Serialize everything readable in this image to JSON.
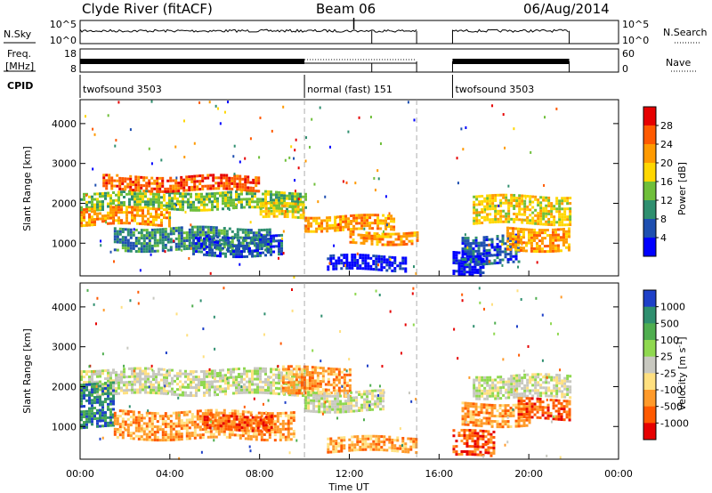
{
  "header": {
    "station": "Clyde River (fitACF)",
    "beam": "Beam 06",
    "date": "06/Aug/2014"
  },
  "nsky_panel": {
    "left_label": "N.Sky",
    "right_label": "N.Search",
    "ticks_left": [
      "10^5",
      "10^0"
    ],
    "ticks_right": [
      "10^5",
      "10^0"
    ],
    "segments": [
      [
        0.0,
        15.0
      ],
      [
        16.6,
        21.8
      ]
    ],
    "noise_level": 0.55,
    "step": {
      "from": 13.0,
      "to": 15.0
    }
  },
  "freq_panel": {
    "left_label_1": "Freq.",
    "left_label_2": "[MHz]",
    "right_label": "Nave",
    "ticks_left": [
      "18",
      "8"
    ],
    "ticks_right": [
      "60",
      "0"
    ],
    "segments": [
      [
        0.0,
        15.0
      ],
      [
        16.6,
        21.8
      ]
    ],
    "dotted_segment": [
      10.0,
      15.0
    ]
  },
  "cpid_panel": {
    "label": "CPID",
    "modes": [
      {
        "name": "twofsound 3503",
        "start": 0.0
      },
      {
        "name": "normal (fast) 151",
        "start": 10.0
      },
      {
        "name": "twofsound 3503",
        "start": 16.6
      }
    ]
  },
  "chart_data": [
    {
      "type": "heatmap",
      "quantity": "power",
      "ylabel": "Slant Range [km]",
      "x_range_hours": [
        0,
        24
      ],
      "ylim_km": [
        180,
        4600
      ],
      "y_ticks": [
        1000,
        2000,
        3000,
        4000
      ],
      "colorbar": {
        "label": "Power [dB]",
        "ticks": [
          "28",
          "24",
          "20",
          "16",
          "12",
          "8",
          "4"
        ],
        "colors": [
          "#e60000",
          "#ff5a00",
          "#ff9a00",
          "#ffd700",
          "#6fbf3a",
          "#2f8f6f",
          "#1e4fb0",
          "#0000ff"
        ]
      },
      "bands": [
        {
          "t0": 0.0,
          "t1": 10.0,
          "r0": 1850,
          "r1": 2300,
          "level": 4
        },
        {
          "t0": 0.0,
          "t1": 4.0,
          "r0": 1450,
          "r1": 1900,
          "level": 2
        },
        {
          "t0": 1.0,
          "t1": 8.0,
          "r0": 2350,
          "r1": 2700,
          "level": 1
        },
        {
          "t0": 1.5,
          "t1": 8.5,
          "r0": 800,
          "r1": 1400,
          "level": 5
        },
        {
          "t0": 5.0,
          "t1": 9.0,
          "r0": 700,
          "r1": 1200,
          "level": 6
        },
        {
          "t0": 8.0,
          "t1": 10.0,
          "r0": 1600,
          "r1": 2000,
          "level": 3
        },
        {
          "t0": 10.0,
          "t1": 14.0,
          "r0": 1300,
          "r1": 1700,
          "level": 2
        },
        {
          "t0": 11.0,
          "t1": 14.5,
          "r0": 350,
          "r1": 700,
          "level": 7
        },
        {
          "t0": 12.0,
          "t1": 15.0,
          "r0": 1000,
          "r1": 1300,
          "level": 2
        },
        {
          "t0": 16.6,
          "t1": 18.0,
          "r0": 250,
          "r1": 800,
          "level": 7
        },
        {
          "t0": 17.0,
          "t1": 19.5,
          "r0": 500,
          "r1": 1200,
          "level": 6
        },
        {
          "t0": 17.5,
          "t1": 21.8,
          "r0": 1500,
          "r1": 2200,
          "level": 3
        },
        {
          "t0": 19.0,
          "t1": 21.8,
          "r0": 800,
          "r1": 1400,
          "level": 2
        }
      ]
    },
    {
      "type": "heatmap",
      "quantity": "velocity",
      "ylabel": "Slant Range [km]",
      "x_range_hours": [
        0,
        24
      ],
      "ylim_km": [
        180,
        4600
      ],
      "y_ticks": [
        1000,
        2000,
        3000,
        4000
      ],
      "x_ticks": [
        "00:00",
        "04:00",
        "08:00",
        "12:00",
        "16:00",
        "20:00",
        "00:00"
      ],
      "xlabel": "Time UT",
      "colorbar": {
        "label": "Velocity [m s",
        "label_sup": "-1",
        "label_end": "]",
        "ticks": [
          "1000",
          "500",
          "100",
          "25",
          "-25",
          "-100",
          "-500",
          "-1000"
        ],
        "colors": [
          "#1e40c8",
          "#2f8f6f",
          "#4fae4f",
          "#8fd84f",
          "#c8c8c0",
          "#ffe080",
          "#ff9a2a",
          "#ff5a00",
          "#e60000"
        ]
      },
      "bands": [
        {
          "t0": 0.0,
          "t1": 10.0,
          "r0": 1800,
          "r1": 2450,
          "level": 4
        },
        {
          "t0": 0.0,
          "t1": 1.5,
          "r0": 1000,
          "r1": 2100,
          "level": 1
        },
        {
          "t0": 1.5,
          "t1": 9.5,
          "r0": 700,
          "r1": 1400,
          "level": 6
        },
        {
          "t0": 5.5,
          "t1": 8.5,
          "r0": 900,
          "r1": 1300,
          "level": 7
        },
        {
          "t0": 9.0,
          "t1": 12.0,
          "r0": 1800,
          "r1": 2500,
          "level": 6
        },
        {
          "t0": 10.0,
          "t1": 13.5,
          "r0": 1400,
          "r1": 1900,
          "level": 4
        },
        {
          "t0": 11.0,
          "t1": 15.0,
          "r0": 350,
          "r1": 750,
          "level": 6
        },
        {
          "t0": 16.6,
          "t1": 18.5,
          "r0": 250,
          "r1": 900,
          "level": 7
        },
        {
          "t0": 17.0,
          "t1": 20.0,
          "r0": 1000,
          "r1": 1600,
          "level": 6
        },
        {
          "t0": 17.5,
          "t1": 21.8,
          "r0": 1700,
          "r1": 2300,
          "level": 4
        },
        {
          "t0": 19.5,
          "t1": 21.8,
          "r0": 1200,
          "r1": 1700,
          "level": 7
        }
      ]
    }
  ]
}
